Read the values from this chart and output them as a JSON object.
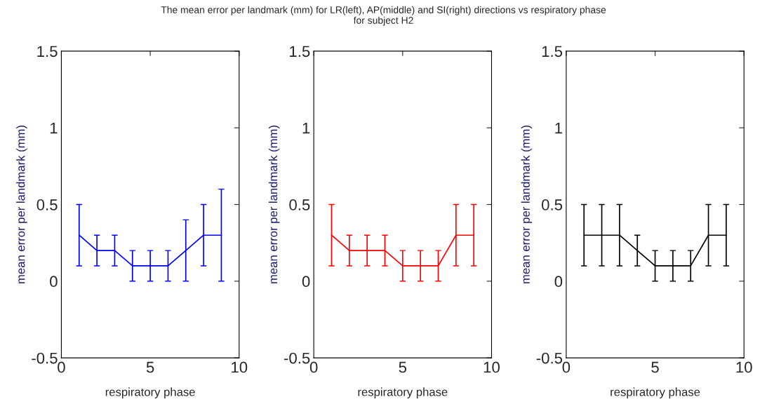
{
  "chart_data": [
    {
      "type": "line",
      "title": "The mean error per landmark (mm) for LR(left), AP(middle) and SI(right) directions vs respiratory phase\nfor subject H2",
      "xlabel": "respiratory phase",
      "ylabel": "mean error per landmark (mm)",
      "x": [
        1,
        2,
        3,
        4,
        5,
        6,
        7,
        8,
        9
      ],
      "xlim": [
        0,
        10
      ],
      "xticks": [
        0,
        5,
        10
      ],
      "ylim": [
        -0.5,
        1.5
      ],
      "yticks": [
        -0.5,
        0,
        0.5,
        1,
        1.5
      ],
      "grid": false,
      "legend": false,
      "series": [
        {
          "color": "#0000ff",
          "values": [
            0.3,
            0.2,
            0.2,
            0.1,
            0.1,
            0.1,
            0.2,
            0.3,
            0.3
          ],
          "errors": [
            0.2,
            0.1,
            0.1,
            0.1,
            0.1,
            0.1,
            0.2,
            0.2,
            0.3
          ]
        }
      ]
    },
    {
      "type": "line",
      "xlabel": "respiratory phase",
      "ylabel": "mean error per landmark (mm)",
      "x": [
        1,
        2,
        3,
        4,
        5,
        6,
        7,
        8,
        9
      ],
      "xlim": [
        0,
        10
      ],
      "xticks": [
        0,
        5,
        10
      ],
      "ylim": [
        -0.5,
        1.5
      ],
      "yticks": [
        -0.5,
        0,
        0.5,
        1,
        1.5
      ],
      "grid": false,
      "legend": false,
      "series": [
        {
          "color": "#ff0000",
          "values": [
            0.3,
            0.2,
            0.2,
            0.2,
            0.1,
            0.1,
            0.1,
            0.3,
            0.3
          ],
          "errors": [
            0.2,
            0.1,
            0.1,
            0.1,
            0.1,
            0.1,
            0.1,
            0.2,
            0.2
          ]
        }
      ]
    },
    {
      "type": "line",
      "xlabel": "respiratory phase",
      "ylabel": "mean error per landmark (mm)",
      "x": [
        1,
        2,
        3,
        4,
        5,
        6,
        7,
        8,
        9
      ],
      "xlim": [
        0,
        10
      ],
      "xticks": [
        0,
        5,
        10
      ],
      "ylim": [
        -0.5,
        1.5
      ],
      "yticks": [
        -0.5,
        0,
        0.5,
        1,
        1.5
      ],
      "grid": false,
      "legend": false,
      "series": [
        {
          "color": "#000000",
          "values": [
            0.3,
            0.3,
            0.3,
            0.2,
            0.1,
            0.1,
            0.1,
            0.3,
            0.3
          ],
          "errors": [
            0.2,
            0.2,
            0.2,
            0.1,
            0.1,
            0.1,
            0.1,
            0.2,
            0.2
          ]
        }
      ]
    }
  ]
}
